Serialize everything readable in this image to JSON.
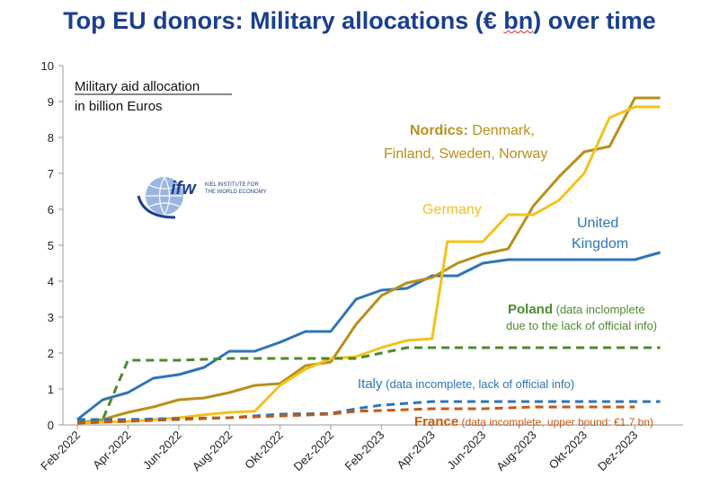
{
  "title_pre": "Top EU donors: Military allocations (€ ",
  "title_bn": "bn",
  "title_post": ") over time",
  "logo": {
    "mark": "ifw",
    "line1": "KIEL INSTITUTE FOR",
    "line2": "THE WORLD ECONOMY"
  },
  "colors": {
    "title": "#1a3f8f",
    "uk": "#2e75b6",
    "germany": "#f5c21b",
    "nordics": "#b8901b",
    "poland": "#4e8a2e",
    "italy": "#2e75b6",
    "france": "#c55a11"
  },
  "chart_data": {
    "type": "line",
    "ylabel": "Military aid allocation in billion Euros",
    "ylabel_line1": "Military aid allocation",
    "ylabel_line2": "in billion Euros",
    "ylim": [
      0,
      10
    ],
    "yticks": [
      "0",
      "1",
      "2",
      "3",
      "4",
      "5",
      "6",
      "7",
      "8",
      "9",
      "10"
    ],
    "x_tick_labels": [
      "Feb-2022",
      "Apr-2022",
      "Jun-2022",
      "Aug-2022",
      "Okt-2022",
      "Dez-2022",
      "Feb-2023",
      "Apr-2023",
      "Jun-2023",
      "Aug-2023",
      "Okt-2023",
      "Dez-2023"
    ],
    "grid": false,
    "series": [
      {
        "key": "uk",
        "style": "solid",
        "points": [
          [
            0,
            0.15
          ],
          [
            0.5,
            0.7
          ],
          [
            1,
            0.9
          ],
          [
            1.5,
            1.3
          ],
          [
            2,
            1.4
          ],
          [
            2.5,
            1.6
          ],
          [
            3,
            2.05
          ],
          [
            3.5,
            2.05
          ],
          [
            4,
            2.3
          ],
          [
            4.5,
            2.6
          ],
          [
            5,
            2.6
          ],
          [
            5.5,
            3.5
          ],
          [
            6,
            3.75
          ],
          [
            6.5,
            3.8
          ],
          [
            7,
            4.15
          ],
          [
            7.5,
            4.15
          ],
          [
            8,
            4.5
          ],
          [
            8.5,
            4.6
          ],
          [
            9,
            4.6
          ],
          [
            10,
            4.6
          ],
          [
            11,
            4.6
          ],
          [
            11.5,
            4.8
          ]
        ]
      },
      {
        "key": "nordics",
        "style": "solid",
        "points": [
          [
            0,
            0.05
          ],
          [
            0.5,
            0.15
          ],
          [
            1,
            0.35
          ],
          [
            1.5,
            0.5
          ],
          [
            2,
            0.7
          ],
          [
            2.5,
            0.75
          ],
          [
            3,
            0.9
          ],
          [
            3.5,
            1.1
          ],
          [
            4,
            1.15
          ],
          [
            4.5,
            1.65
          ],
          [
            5,
            1.75
          ],
          [
            5.5,
            2.8
          ],
          [
            6,
            3.6
          ],
          [
            6.5,
            3.95
          ],
          [
            7,
            4.1
          ],
          [
            7.5,
            4.5
          ],
          [
            8,
            4.75
          ],
          [
            8.5,
            4.9
          ],
          [
            9,
            6.1
          ],
          [
            9.5,
            6.9
          ],
          [
            10,
            7.6
          ],
          [
            10.5,
            7.75
          ],
          [
            11,
            9.1
          ],
          [
            11.5,
            9.1
          ]
        ]
      },
      {
        "key": "germany",
        "style": "solid",
        "points": [
          [
            0,
            0.05
          ],
          [
            1,
            0.1
          ],
          [
            2,
            0.2
          ],
          [
            2.5,
            0.28
          ],
          [
            3,
            0.35
          ],
          [
            3.5,
            0.38
          ],
          [
            4,
            1.1
          ],
          [
            4.5,
            1.55
          ],
          [
            5,
            1.85
          ],
          [
            5.5,
            1.9
          ],
          [
            6,
            2.15
          ],
          [
            6.5,
            2.35
          ],
          [
            7,
            2.4
          ],
          [
            7.3,
            5.1
          ],
          [
            8,
            5.1
          ],
          [
            8.5,
            5.85
          ],
          [
            9,
            5.85
          ],
          [
            9.5,
            6.25
          ],
          [
            10,
            7.0
          ],
          [
            10.5,
            8.55
          ],
          [
            11,
            8.85
          ],
          [
            11.5,
            8.85
          ]
        ]
      },
      {
        "key": "poland",
        "style": "dashed",
        "points": [
          [
            0,
            0.1
          ],
          [
            0.5,
            0.15
          ],
          [
            1,
            1.8
          ],
          [
            2,
            1.8
          ],
          [
            3,
            1.85
          ],
          [
            4,
            1.85
          ],
          [
            5,
            1.85
          ],
          [
            5.5,
            1.85
          ],
          [
            6,
            2.0
          ],
          [
            6.5,
            2.15
          ],
          [
            7,
            2.15
          ],
          [
            11.5,
            2.15
          ]
        ]
      },
      {
        "key": "italy",
        "style": "dashed",
        "points": [
          [
            0,
            0.15
          ],
          [
            1,
            0.15
          ],
          [
            2,
            0.18
          ],
          [
            3,
            0.2
          ],
          [
            4,
            0.3
          ],
          [
            5,
            0.32
          ],
          [
            5.5,
            0.45
          ],
          [
            6,
            0.55
          ],
          [
            6.5,
            0.6
          ],
          [
            7,
            0.65
          ],
          [
            8,
            0.65
          ],
          [
            9,
            0.65
          ],
          [
            10,
            0.65
          ],
          [
            11,
            0.65
          ],
          [
            11.5,
            0.65
          ]
        ]
      },
      {
        "key": "france",
        "style": "dashed",
        "points": [
          [
            0,
            0.05
          ],
          [
            1,
            0.1
          ],
          [
            2,
            0.15
          ],
          [
            3,
            0.2
          ],
          [
            4,
            0.25
          ],
          [
            5,
            0.3
          ],
          [
            5.5,
            0.38
          ],
          [
            6,
            0.4
          ],
          [
            7,
            0.45
          ],
          [
            8,
            0.45
          ],
          [
            9,
            0.5
          ],
          [
            10,
            0.5
          ],
          [
            11,
            0.5
          ]
        ]
      }
    ],
    "annotations": {
      "nordics_head": "Nordics:",
      "nordics_line1": " Denmark,",
      "nordics_line2": "Finland, Sweden, Norway",
      "germany": "Germany",
      "uk_line1": "United",
      "uk_line2": "Kingdom",
      "poland_head": "Poland",
      "poland_line1": " (data inclomplete",
      "poland_line2": "due to the lack of official info)",
      "italy_head": "Italy",
      "italy_rest": " (data incomplete, lack of official info)",
      "france_head": "France",
      "france_rest": " (data incomplete, upper bound: €1.7 bn)"
    }
  }
}
